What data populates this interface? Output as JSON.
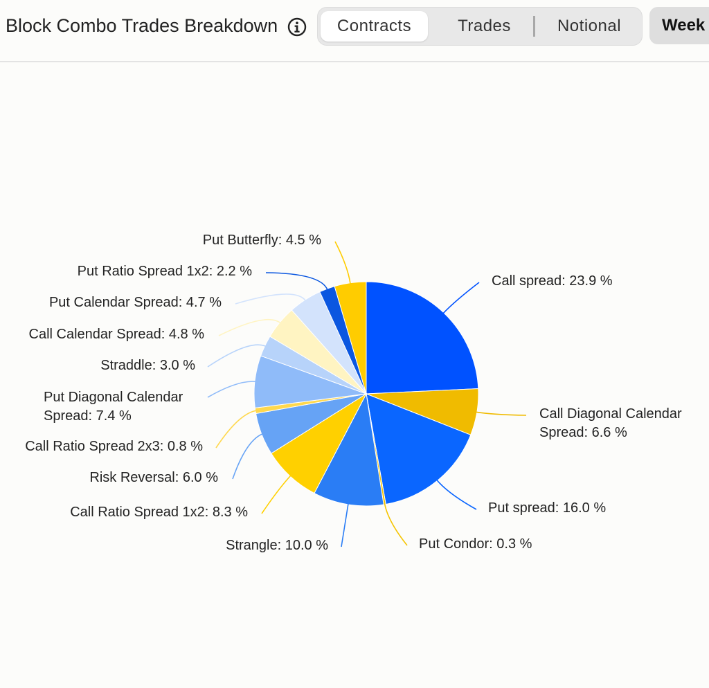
{
  "header": {
    "title": "Block Combo Trades Breakdown",
    "info_icon": "info-circle-icon",
    "tabs": [
      {
        "label": "Contracts",
        "active": true
      },
      {
        "label": "Trades",
        "active": false
      },
      {
        "label": "Notional",
        "active": false
      }
    ],
    "period_label": "Week"
  },
  "chart_data": {
    "type": "pie",
    "slices": [
      {
        "name": "Call spread",
        "value": 23.9,
        "color": "#0052ff"
      },
      {
        "name": "Call Diagonal Calendar Spread",
        "value": 6.6,
        "color": "#f0bb00"
      },
      {
        "name": "Put spread",
        "value": 16.0,
        "color": "#0a66ff"
      },
      {
        "name": "Put Condor",
        "value": 0.3,
        "color": "#f5c400"
      },
      {
        "name": "Strangle",
        "value": 10.0,
        "color": "#2a7df5"
      },
      {
        "name": "Call Ratio Spread 1x2",
        "value": 8.3,
        "color": "#ffd000"
      },
      {
        "name": "Risk Reversal",
        "value": 6.0,
        "color": "#66a3f5"
      },
      {
        "name": "Call Ratio Spread 2x3",
        "value": 0.8,
        "color": "#ffd84d"
      },
      {
        "name": "Put Diagonal Calendar Spread",
        "value": 7.4,
        "color": "#8fbbf9"
      },
      {
        "name": "Straddle",
        "value": 3.0,
        "color": "#b7d3fa"
      },
      {
        "name": "Call Calendar Spread",
        "value": 4.8,
        "color": "#fff4c2"
      },
      {
        "name": "Put Calendar Spread",
        "value": 4.7,
        "color": "#d3e3fc"
      },
      {
        "name": "Put Ratio Spread 1x2",
        "value": 2.2,
        "color": "#0b57e0"
      },
      {
        "name": "Put Butterfly",
        "value": 4.5,
        "color": "#ffcc00"
      }
    ],
    "label_format": "{name}: {value} %",
    "legend": "none"
  }
}
